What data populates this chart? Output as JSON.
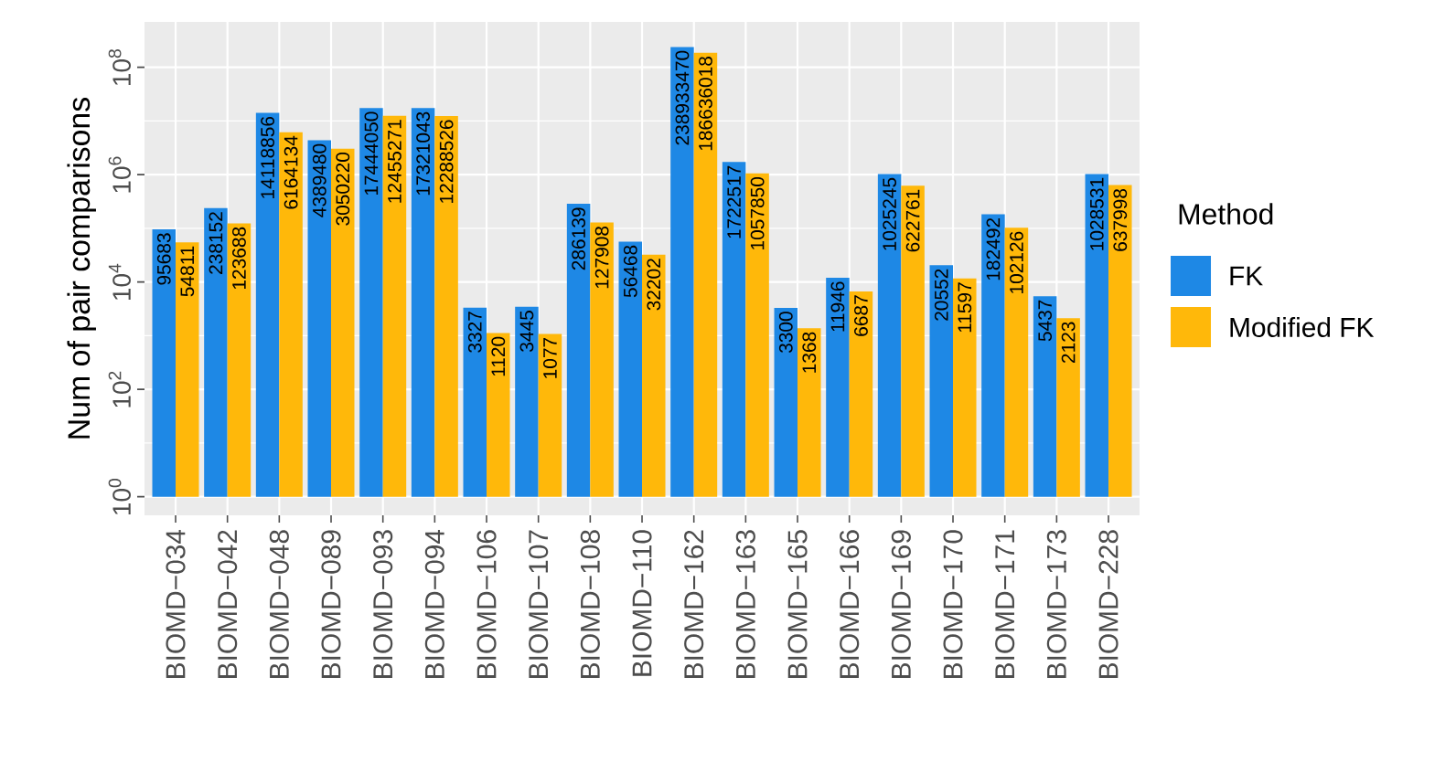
{
  "chart_data": {
    "type": "bar",
    "ylabel": "Num of pair comparisons",
    "legend_title": "Method",
    "log": true,
    "grid": true,
    "legend": "right",
    "data_labels": true,
    "categories": [
      "BIOMD−034",
      "BIOMD−042",
      "BIOMD−048",
      "BIOMD−089",
      "BIOMD−093",
      "BIOMD−094",
      "BIOMD−106",
      "BIOMD−107",
      "BIOMD−108",
      "BIOMD−110",
      "BIOMD−162",
      "BIOMD−163",
      "BIOMD−165",
      "BIOMD−166",
      "BIOMD−169",
      "BIOMD−170",
      "BIOMD−171",
      "BIOMD−173",
      "BIOMD−228"
    ],
    "ylim": [
      0.45,
      700000000
    ],
    "yticks": [
      {
        "value": 1,
        "label": "10$^{0}$"
      },
      {
        "value": 100,
        "label": "10$^{2}$"
      },
      {
        "value": 10000,
        "label": "10$^{4}$"
      },
      {
        "value": 1000000,
        "label": "10$^{6}$"
      },
      {
        "value": 100000000,
        "label": "10$^{8}$"
      }
    ],
    "series": [
      {
        "name": "FK",
        "color": "#1e88e5",
        "base": [
          1,
          1,
          1,
          1,
          1,
          1,
          1,
          1,
          1,
          1,
          1,
          1,
          1,
          1,
          1,
          1,
          1,
          1,
          1
        ],
        "values": [
          95683,
          238152,
          14118856,
          4389480,
          17444050,
          17321043,
          3327,
          3445,
          286139,
          56468,
          238933470,
          1722517,
          3300,
          11946,
          1025245,
          20552,
          182492,
          5437,
          1028531
        ]
      },
      {
        "name": "Modified FK",
        "color": "#ffb80a",
        "base": [
          1,
          1,
          1,
          1,
          1,
          1,
          1,
          1,
          1,
          1,
          1,
          1,
          1,
          1,
          1,
          1,
          1,
          1,
          1
        ],
        "values": [
          54811,
          123688,
          6164134,
          3050220,
          12455271,
          12288526,
          1120,
          1077,
          127908,
          32202,
          186636018,
          1057850,
          1368,
          6687,
          622761,
          11597,
          102126,
          2123,
          637998
        ]
      }
    ]
  }
}
